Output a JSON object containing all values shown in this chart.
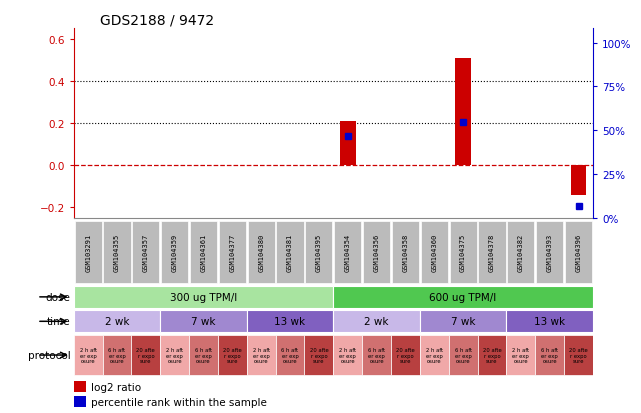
{
  "title": "GDS2188 / 9472",
  "samples": [
    "GSM103291",
    "GSM104355",
    "GSM104357",
    "GSM104359",
    "GSM104361",
    "GSM104377",
    "GSM104380",
    "GSM104381",
    "GSM104395",
    "GSM104354",
    "GSM104356",
    "GSM104358",
    "GSM104360",
    "GSM104375",
    "GSM104378",
    "GSM104382",
    "GSM104393",
    "GSM104396"
  ],
  "log2_ratio": [
    0,
    0,
    0,
    0,
    0,
    0,
    0,
    0,
    0,
    0.21,
    0,
    0,
    0,
    0.51,
    0,
    0,
    0,
    -0.14
  ],
  "percentile_rank": [
    null,
    null,
    null,
    null,
    null,
    null,
    null,
    null,
    null,
    0.47,
    null,
    null,
    null,
    0.55,
    null,
    null,
    null,
    0.07
  ],
  "ylim_left": [
    -0.25,
    0.65
  ],
  "ylim_right": [
    0,
    1.0833
  ],
  "yticks_left": [
    -0.2,
    0.0,
    0.2,
    0.4,
    0.6
  ],
  "yticks_right": [
    0,
    0.25,
    0.5,
    0.75,
    1.0
  ],
  "ytick_labels_right": [
    "0%",
    "25%",
    "50%",
    "75%",
    "100%"
  ],
  "dose_groups": [
    {
      "label": "300 ug TPM/l",
      "start": 0,
      "end": 9,
      "color": "#A8E4A0"
    },
    {
      "label": "600 ug TPM/l",
      "start": 9,
      "end": 18,
      "color": "#50C850"
    }
  ],
  "time_groups": [
    {
      "label": "2 wk",
      "start": 0,
      "end": 3,
      "color": "#C8B8E8"
    },
    {
      "label": "7 wk",
      "start": 3,
      "end": 6,
      "color": "#A088D0"
    },
    {
      "label": "13 wk",
      "start": 6,
      "end": 9,
      "color": "#8060C0"
    },
    {
      "label": "2 wk",
      "start": 9,
      "end": 12,
      "color": "#C8B8E8"
    },
    {
      "label": "7 wk",
      "start": 12,
      "end": 15,
      "color": "#A088D0"
    },
    {
      "label": "13 wk",
      "start": 15,
      "end": 18,
      "color": "#8060C0"
    }
  ],
  "protocol_colors": [
    "#F0A8A8",
    "#D07070",
    "#B84040"
  ],
  "protocol_labels": [
    "2 h aft\ner exp\nosure",
    "6 h aft\ner exp\nosure",
    "20 afte\nr expo\nsure"
  ],
  "bar_color": "#CC0000",
  "dot_color": "#0000CC",
  "zero_line_color": "#CC0000",
  "left_tick_color": "#CC0000",
  "right_tick_color": "#0000CC",
  "sample_box_color": "#BBBBBB",
  "bg_color": "#FFFFFF"
}
